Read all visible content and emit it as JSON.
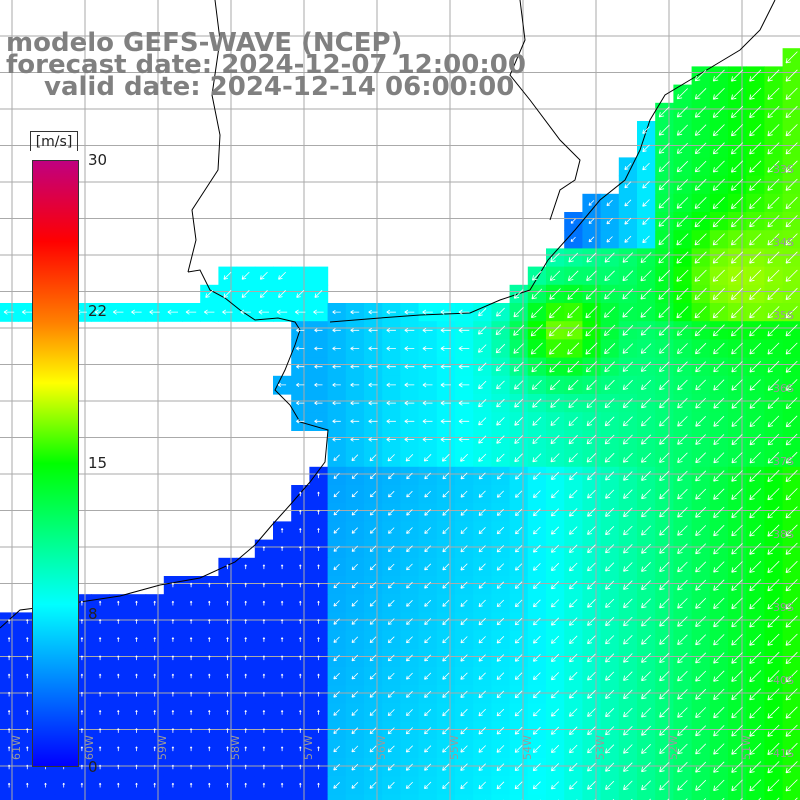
{
  "title": {
    "line1": "modelo GEFS-WAVE (NCEP)",
    "line2": "forecast date: 2024-12-07 12:00:00",
    "line3": "valid date: 2024-12-14 06:00:00"
  },
  "colorbar": {
    "unit": "[m/s]",
    "ticks": [
      "30",
      "22",
      "15",
      "8",
      "0"
    ],
    "tick_values": [
      30,
      22,
      15,
      8,
      0
    ],
    "range": [
      0,
      30
    ],
    "colors": [
      "#0000ff",
      "#00ffff",
      "#00ff00",
      "#ffff00",
      "#ff8000",
      "#ff0000",
      "#c00080"
    ]
  },
  "map": {
    "lat_labels": [
      "33S",
      "34S",
      "35S",
      "36S",
      "37S",
      "38S",
      "39S",
      "40S",
      "41S"
    ],
    "lon_labels": [
      "61W",
      "60W",
      "59W",
      "58W",
      "57W",
      "56W",
      "55W",
      "54W",
      "53W",
      "52W",
      "51W"
    ],
    "land_color": "#ffffff",
    "grid_color": "#aaaaaa",
    "arrow_color": "#ffffff"
  },
  "chart_data": {
    "type": "heatmap",
    "title": "modelo GEFS-WAVE (NCEP)",
    "variable": "wind speed",
    "unit": "m/s",
    "x_range_deg": [
      -61.0,
      -51.0
    ],
    "y_range_deg": [
      -41.0,
      -30.5
    ],
    "value_range": [
      0,
      30
    ],
    "approx_regions": [
      {
        "region": "nearshore south of Buenos Aires / Bahia Blanca",
        "speed_ms": 1.5
      },
      {
        "region": "Rio de la Plata estuary",
        "speed_ms": 6
      },
      {
        "region": "offshore south of 37S",
        "speed_ms": 8
      },
      {
        "region": "Uruguay coast near 35S",
        "speed_ms": 16
      },
      {
        "region": "southern Brazil shelf 32-34S",
        "speed_ms": 13
      }
    ],
    "wind_direction": "from NE toward SW offshore; from E toward W in the estuary"
  }
}
